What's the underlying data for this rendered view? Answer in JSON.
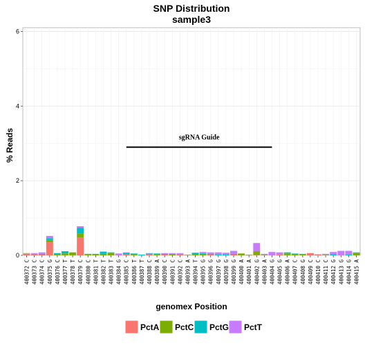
{
  "chart_data": {
    "type": "bar",
    "stacked": true,
    "title": "SNP Distribution",
    "subtitle": "sample3",
    "xlabel": "genomex Position",
    "ylabel": "% Reads",
    "ylim": [
      0,
      6.1
    ],
    "yticks": [
      0,
      2,
      4,
      6
    ],
    "grid": true,
    "legend_position": "bottom",
    "categories": [
      "400372 C",
      "400373 C",
      "400374 C",
      "400375 G",
      "400376 C",
      "400377 T",
      "400378 T",
      "400379 C",
      "400380 C",
      "400381 T",
      "400382 T",
      "400383 T",
      "400384 G",
      "400385 C",
      "400386 T",
      "400387 T",
      "400388 C",
      "400389 A",
      "400390 C",
      "400391 C",
      "400392 C",
      "400393 A",
      "400394 T",
      "400395 G",
      "400396 G",
      "400397 G",
      "400398 G",
      "400399 G",
      "400400 A",
      "400401 A",
      "400402 G",
      "400403 A",
      "400404 G",
      "400405 G",
      "400406 A",
      "400407 C",
      "400408 G",
      "400409 C",
      "400410 C",
      "400411 C",
      "400412 G",
      "400413 G",
      "400414 G",
      "400415 A"
    ],
    "series": [
      {
        "name": "PctA",
        "color": "#F8766D",
        "values": [
          0.04,
          0.03,
          0.02,
          0.35,
          0,
          0,
          0,
          0.48,
          0,
          0,
          0,
          0,
          0,
          0.03,
          0,
          0,
          0.03,
          0,
          0.02,
          0,
          0.03,
          0,
          0,
          0,
          0.02,
          0,
          0,
          0.02,
          0,
          0,
          0.01,
          0,
          0,
          0.02,
          0,
          0,
          0,
          0.06,
          0.02,
          0,
          0,
          0,
          0,
          0
        ]
      },
      {
        "name": "PctC",
        "color": "#7CAE00",
        "values": [
          0.01,
          0.01,
          0,
          0.06,
          0.02,
          0.05,
          0.08,
          0.1,
          0.02,
          0.02,
          0.04,
          0.06,
          0,
          0,
          0.02,
          0,
          0,
          0.03,
          0,
          0.03,
          0,
          0.01,
          0.02,
          0.04,
          0,
          0,
          0,
          0,
          0.05,
          0.01,
          0.1,
          0.01,
          0,
          0,
          0.05,
          0.04,
          0.02,
          0,
          0,
          0.01,
          0,
          0,
          0,
          0.06
        ]
      },
      {
        "name": "PctG",
        "color": "#00BFC4",
        "values": [
          0,
          0,
          0.02,
          0.05,
          0.04,
          0.06,
          0,
          0.16,
          0.02,
          0.02,
          0.06,
          0.02,
          0,
          0.04,
          0.03,
          0.02,
          0.02,
          0.02,
          0.02,
          0.01,
          0.01,
          0,
          0.05,
          0.02,
          0.02,
          0.02,
          0.02,
          0.02,
          0,
          0,
          0,
          0,
          0,
          0,
          0.03,
          0.01,
          0.02,
          0,
          0,
          0,
          0.03,
          0,
          0.02,
          0.02
        ]
      },
      {
        "name": "PctT",
        "color": "#C77CFF",
        "values": [
          0.01,
          0.02,
          0.04,
          0.06,
          0,
          0,
          0,
          0.04,
          0,
          0,
          0,
          0,
          0.05,
          0.01,
          0,
          0,
          0.01,
          0,
          0.02,
          0.02,
          0.02,
          0.01,
          0,
          0.03,
          0.04,
          0.06,
          0.05,
          0.08,
          0,
          0.01,
          0.22,
          0.03,
          0.09,
          0.06,
          0,
          0,
          0,
          0,
          0.01,
          0.03,
          0.06,
          0.12,
          0.1,
          0
        ]
      }
    ],
    "annotations": [
      {
        "label": "sgRNA Guide",
        "x_start": "400385 C",
        "x_end": "400404 G",
        "y": 2.9
      }
    ]
  }
}
